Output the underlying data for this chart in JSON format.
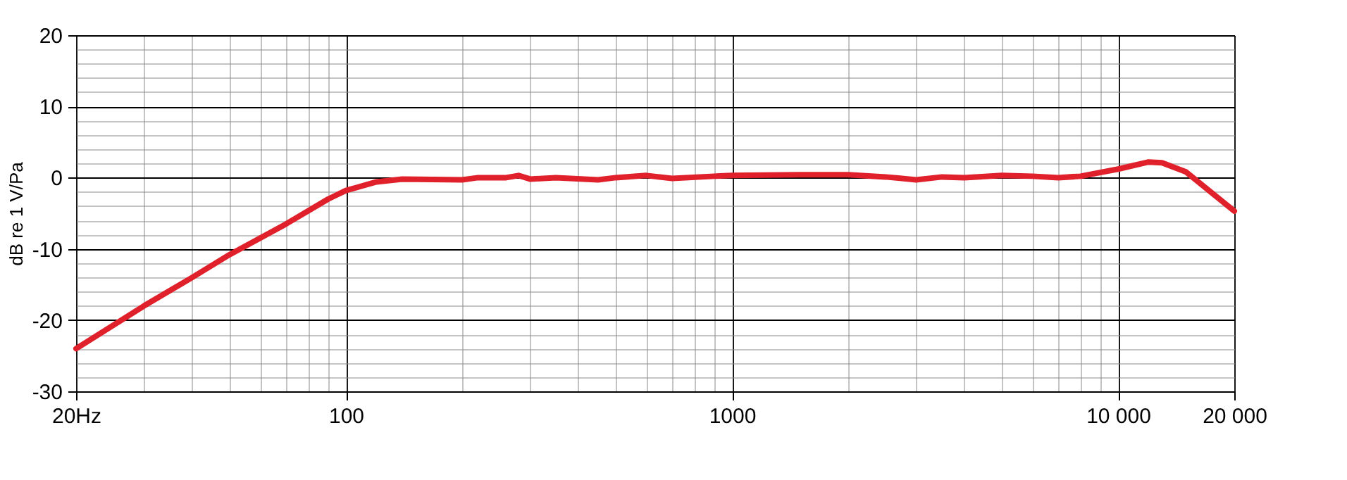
{
  "chart_data": {
    "type": "line",
    "ylabel": "dB re 1 V/Pa",
    "x": [
      20,
      30,
      40,
      50,
      70,
      90,
      100,
      120,
      140,
      200,
      220,
      260,
      280,
      300,
      350,
      450,
      500,
      600,
      700,
      900,
      1000,
      1500,
      2000,
      2500,
      3000,
      3500,
      4000,
      5000,
      6000,
      7000,
      8000,
      10000,
      12000,
      13000,
      15000,
      20000
    ],
    "series": [
      {
        "color": "#e0202a",
        "values": [
          -24,
          -18,
          -14,
          -10.8,
          -6.5,
          -3,
          -1.8,
          -0.6,
          -0.2,
          -0.3,
          0,
          0,
          0.3,
          -0.2,
          0,
          -0.3,
          0,
          0.3,
          -0.1,
          0.2,
          0.3,
          0.4,
          0.4,
          0.1,
          -0.3,
          0.1,
          0,
          0.3,
          0.2,
          0,
          0.2,
          1.2,
          2.2,
          2.1,
          0.8,
          -4.7
        ]
      }
    ],
    "log": "x",
    "xlim": [
      20,
      20000
    ],
    "ylim": [
      -30,
      20
    ],
    "xticks": [
      {
        "value": 20,
        "label": "20Hz"
      },
      {
        "value": 30,
        "label": null
      },
      {
        "value": 40,
        "label": null
      },
      {
        "value": 50,
        "label": null
      },
      {
        "value": 60,
        "label": null
      },
      {
        "value": 70,
        "label": null
      },
      {
        "value": 80,
        "label": null
      },
      {
        "value": 90,
        "label": null
      },
      100,
      {
        "value": 200,
        "label": null
      },
      {
        "value": 300,
        "label": null
      },
      {
        "value": 400,
        "label": null
      },
      {
        "value": 500,
        "label": null
      },
      {
        "value": 600,
        "label": null
      },
      {
        "value": 700,
        "label": null
      },
      {
        "value": 800,
        "label": null
      },
      {
        "value": 900,
        "label": null
      },
      1000,
      {
        "value": 2000,
        "label": null
      },
      {
        "value": 3000,
        "label": null
      },
      {
        "value": 4000,
        "label": null
      },
      {
        "value": 5000,
        "label": null
      },
      {
        "value": 6000,
        "label": null
      },
      {
        "value": 7000,
        "label": null
      },
      {
        "value": 8000,
        "label": null
      },
      {
        "value": 9000,
        "label": null
      },
      {
        "value": 10000,
        "label": "10 000"
      },
      {
        "value": 20000,
        "label": "20 000"
      }
    ],
    "yticks": [
      -30,
      {
        "value": -28,
        "label": null
      },
      {
        "value": -26,
        "label": null
      },
      {
        "value": -24,
        "label": null
      },
      {
        "value": -22,
        "label": null
      },
      -20,
      {
        "value": -18,
        "label": null
      },
      {
        "value": -16,
        "label": null
      },
      {
        "value": -14,
        "label": null
      },
      {
        "value": -12,
        "label": null
      },
      -10,
      {
        "value": -8,
        "label": null
      },
      {
        "value": -6,
        "label": null
      },
      {
        "value": -4,
        "label": null
      },
      {
        "value": -2,
        "label": null
      },
      0,
      {
        "value": 2,
        "label": null
      },
      {
        "value": 4,
        "label": null
      },
      {
        "value": 6,
        "label": null
      },
      {
        "value": 8,
        "label": null
      },
      10,
      {
        "value": 12,
        "label": null
      },
      {
        "value": 14,
        "label": null
      },
      {
        "value": 16,
        "label": null
      },
      {
        "value": 18,
        "label": null
      },
      20
    ],
    "grid": true,
    "line_style": "solid",
    "marker": "none"
  }
}
